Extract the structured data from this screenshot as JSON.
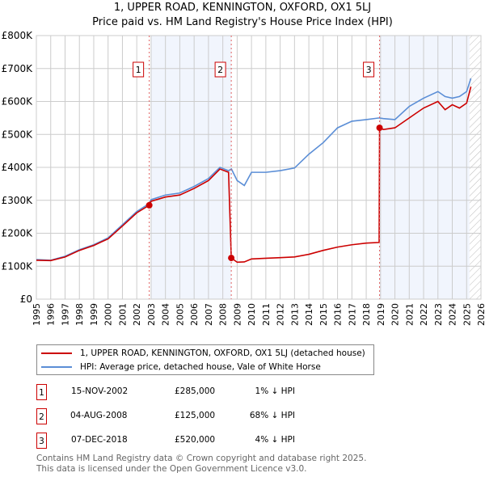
{
  "chart_data": {
    "type": "line",
    "title": "1, UPPER ROAD, KENNINGTON, OXFORD, OX1 5LJ",
    "subtitle": "Price paid vs. HM Land Registry's House Price Index (HPI)",
    "xlim": [
      1995,
      2026
    ],
    "ylim": [
      0,
      800000
    ],
    "x_ticks": [
      "1995",
      "1996",
      "1997",
      "1998",
      "1999",
      "2000",
      "2001",
      "2002",
      "2003",
      "2004",
      "2005",
      "2006",
      "2007",
      "2008",
      "2009",
      "2010",
      "2011",
      "2012",
      "2013",
      "2014",
      "2015",
      "2016",
      "2017",
      "2018",
      "2019",
      "2020",
      "2021",
      "2022",
      "2023",
      "2024",
      "2025",
      "2026"
    ],
    "y_ticks": [
      {
        "v": 0,
        "label": "£0"
      },
      {
        "v": 100000,
        "label": "£100K"
      },
      {
        "v": 200000,
        "label": "£200K"
      },
      {
        "v": 300000,
        "label": "£300K"
      },
      {
        "v": 400000,
        "label": "£400K"
      },
      {
        "v": 500000,
        "label": "£500K"
      },
      {
        "v": 600000,
        "label": "£600K"
      },
      {
        "v": 700000,
        "label": "£700K"
      },
      {
        "v": 800000,
        "label": "£800K"
      }
    ],
    "grid": true,
    "series": [
      {
        "name": "1, UPPER ROAD, KENNINGTON, OXFORD, OX1 5LJ (detached house)",
        "color": "#cc0000",
        "x": [
          1995,
          1996,
          1997,
          1998,
          1999,
          2000,
          2001,
          2002,
          2002.87,
          2003,
          2004,
          2005,
          2006,
          2007,
          2007.8,
          2008.4,
          2008.59,
          2009,
          2009.5,
          2010,
          2011,
          2012,
          2013,
          2014,
          2015,
          2016,
          2017,
          2018,
          2018.9,
          2018.93,
          2019.2,
          2020,
          2021,
          2022,
          2023,
          2023.5,
          2024,
          2024.5,
          2025,
          2025.3
        ],
        "y": [
          118000,
          117000,
          128000,
          148000,
          163000,
          183000,
          222000,
          262000,
          285000,
          297000,
          310000,
          316000,
          336000,
          360000,
          395000,
          385000,
          125000,
          112000,
          113000,
          122000,
          124000,
          126000,
          128000,
          136000,
          148000,
          158000,
          165000,
          170000,
          172000,
          520000,
          515000,
          520000,
          550000,
          580000,
          600000,
          575000,
          590000,
          580000,
          595000,
          645000
        ]
      },
      {
        "name": "HPI: Average price, detached house, Vale of White Horse",
        "color": "#5b8ed6",
        "x": [
          1995,
          1996,
          1997,
          1998,
          1999,
          2000,
          2001,
          2002,
          2002.87,
          2003,
          2004,
          2005,
          2006,
          2007,
          2007.8,
          2008.4,
          2008.6,
          2009,
          2009.5,
          2010,
          2011,
          2012,
          2013,
          2014,
          2015,
          2016,
          2017,
          2018,
          2018.9,
          2019.2,
          2020,
          2021,
          2022,
          2023,
          2023.5,
          2024,
          2024.5,
          2025,
          2025.3
        ],
        "y": [
          120000,
          118000,
          130000,
          150000,
          165000,
          186000,
          226000,
          266000,
          290000,
          302000,
          316000,
          322000,
          342000,
          366000,
          400000,
          390000,
          395000,
          360000,
          345000,
          385000,
          385000,
          390000,
          398000,
          440000,
          475000,
          520000,
          540000,
          545000,
          550000,
          548000,
          545000,
          585000,
          610000,
          630000,
          615000,
          610000,
          615000,
          630000,
          670000
        ]
      }
    ],
    "sales": [
      {
        "n": "1",
        "x": 2002.87,
        "y": 285000,
        "date": "15-NOV-2002",
        "price": "£285,000",
        "hpi": "1% ↓ HPI"
      },
      {
        "n": "2",
        "x": 2008.59,
        "y": 125000,
        "date": "04-AUG-2008",
        "price": "£125,000",
        "hpi": "68% ↓ HPI"
      },
      {
        "n": "3",
        "x": 2018.93,
        "y": 520000,
        "date": "07-DEC-2018",
        "price": "£520,000",
        "hpi": "4% ↓ HPI"
      }
    ],
    "shaded_ranges": [
      [
        2003,
        2008.59
      ],
      [
        2018.93,
        2025.2
      ]
    ],
    "forecast_hatch_from": 2025.2
  },
  "legend": {
    "red": "1, UPPER ROAD, KENNINGTON, OXFORD, OX1 5LJ (detached house)",
    "blue": "HPI: Average price, detached house, Vale of White Horse"
  },
  "footer": {
    "line1": "Contains HM Land Registry data © Crown copyright and database right 2025.",
    "line2": "This data is licensed under the Open Government Licence v3.0."
  }
}
